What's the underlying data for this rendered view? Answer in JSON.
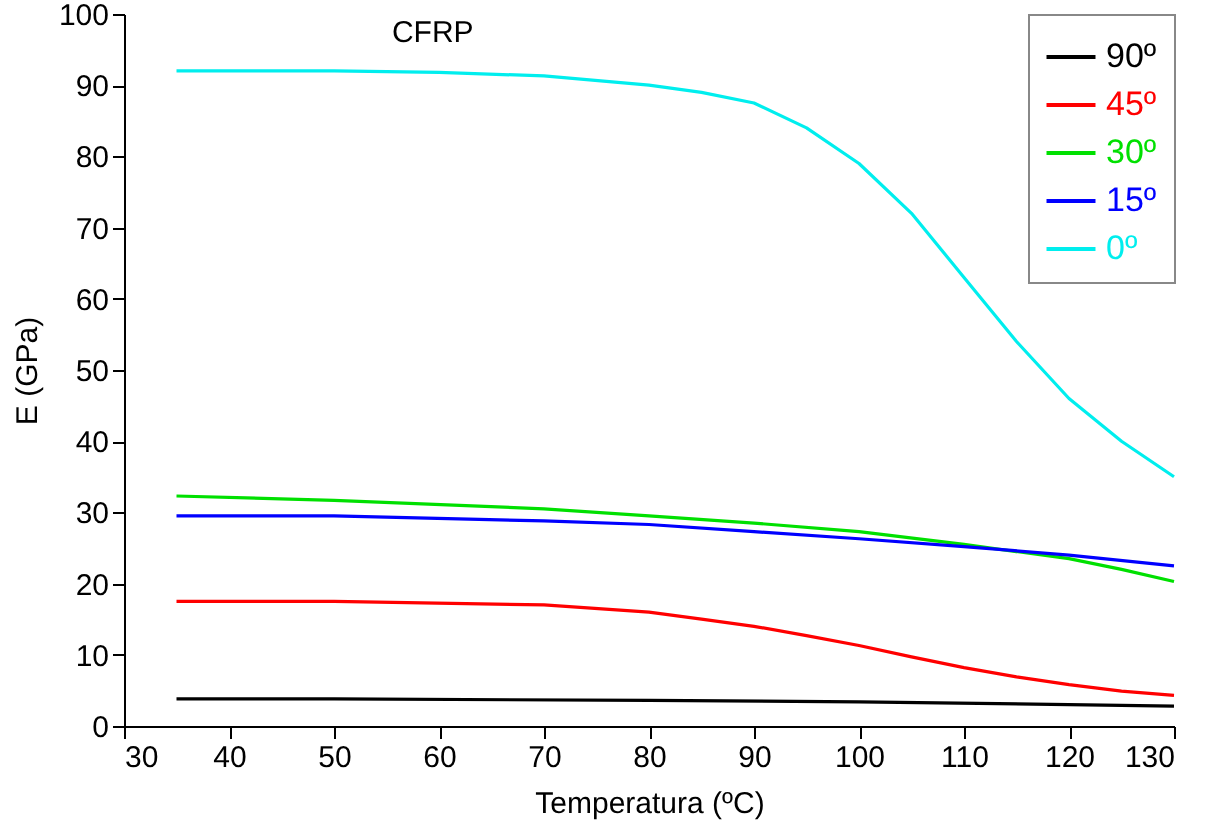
{
  "chart_data": {
    "type": "line",
    "title": "CFRP",
    "xlabel": "Temperatura (ºC)",
    "ylabel": "E (GPa)",
    "xlim": [
      30,
      130
    ],
    "xticks": [
      30,
      40,
      50,
      60,
      70,
      80,
      90,
      100,
      110,
      120,
      130
    ],
    "ylim": [
      0,
      100
    ],
    "yticks": [
      0,
      10,
      20,
      30,
      40,
      50,
      60,
      70,
      80,
      90,
      100
    ],
    "grid": false,
    "legend": "top right",
    "marker": "none",
    "line_style": "solid",
    "series": [
      {
        "name": "90º",
        "color": "#000000",
        "x": [
          35,
          50,
          80,
          100,
          130
        ],
        "values": [
          3.8,
          3.8,
          3.6,
          3.4,
          2.8
        ]
      },
      {
        "name": "45º",
        "color": "#ff0000",
        "x": [
          35,
          50,
          70,
          80,
          85,
          90,
          95,
          100,
          105,
          110,
          115,
          120,
          125,
          130
        ],
        "values": [
          17.5,
          17.5,
          17,
          16,
          15,
          14,
          12.7,
          11.3,
          9.7,
          8.2,
          6.9,
          5.8,
          4.9,
          4.3
        ]
      },
      {
        "name": "30º",
        "color": "#00e000",
        "x": [
          35,
          50,
          70,
          80,
          90,
          100,
          110,
          120,
          125,
          130
        ],
        "values": [
          32.3,
          31.7,
          30.5,
          29.5,
          28.5,
          27.3,
          25.5,
          23.5,
          22,
          20.3
        ]
      },
      {
        "name": "15º",
        "color": "#0000ff",
        "x": [
          35,
          50,
          70,
          80,
          90,
          100,
          110,
          120,
          130
        ],
        "values": [
          29.5,
          29.5,
          28.8,
          28.3,
          27.3,
          26.3,
          25.2,
          24,
          22.5
        ]
      },
      {
        "name": "0º",
        "color": "#00eeee",
        "x": [
          35,
          50,
          60,
          70,
          80,
          85,
          90,
          95,
          100,
          105,
          110,
          115,
          120,
          125,
          130
        ],
        "values": [
          92,
          92,
          91.8,
          91.3,
          90,
          89,
          87.5,
          84,
          79,
          72,
          63,
          54,
          46,
          40,
          35
        ]
      }
    ]
  }
}
